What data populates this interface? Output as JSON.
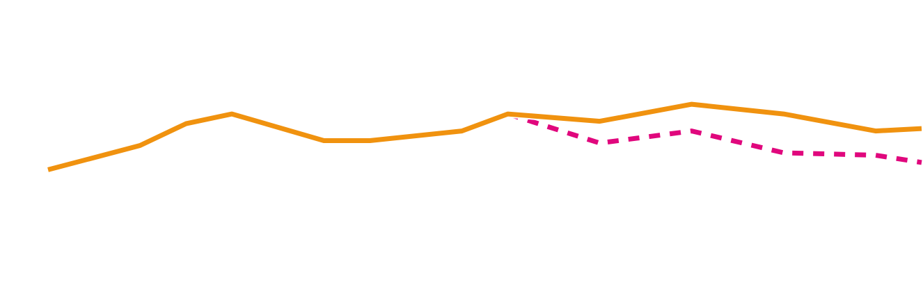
{
  "chart_data": {
    "type": "line",
    "x": [
      1,
      2,
      3,
      4,
      5,
      6,
      7,
      8,
      9,
      10,
      11,
      12,
      13,
      14,
      15,
      16,
      17,
      18,
      19,
      20
    ],
    "series": [
      {
        "color": "#F0920F",
        "style": "solid",
        "values": [
          5.5,
          null,
          6.0,
          6.45,
          6.65,
          null,
          6.1,
          6.1,
          null,
          6.3,
          6.65,
          null,
          6.5,
          null,
          6.85,
          null,
          6.65,
          null,
          6.3,
          6.35
        ]
      },
      {
        "color": "#E0077D",
        "style": "dashed",
        "values": [
          null,
          null,
          null,
          null,
          null,
          null,
          null,
          null,
          null,
          null,
          6.65,
          null,
          6.05,
          null,
          6.3,
          null,
          5.85,
          null,
          5.8,
          5.65
        ]
      }
    ],
    "ylim": [
      3.0,
      9.0
    ],
    "grid": false,
    "legend": "none",
    "axes_visible": false
  }
}
